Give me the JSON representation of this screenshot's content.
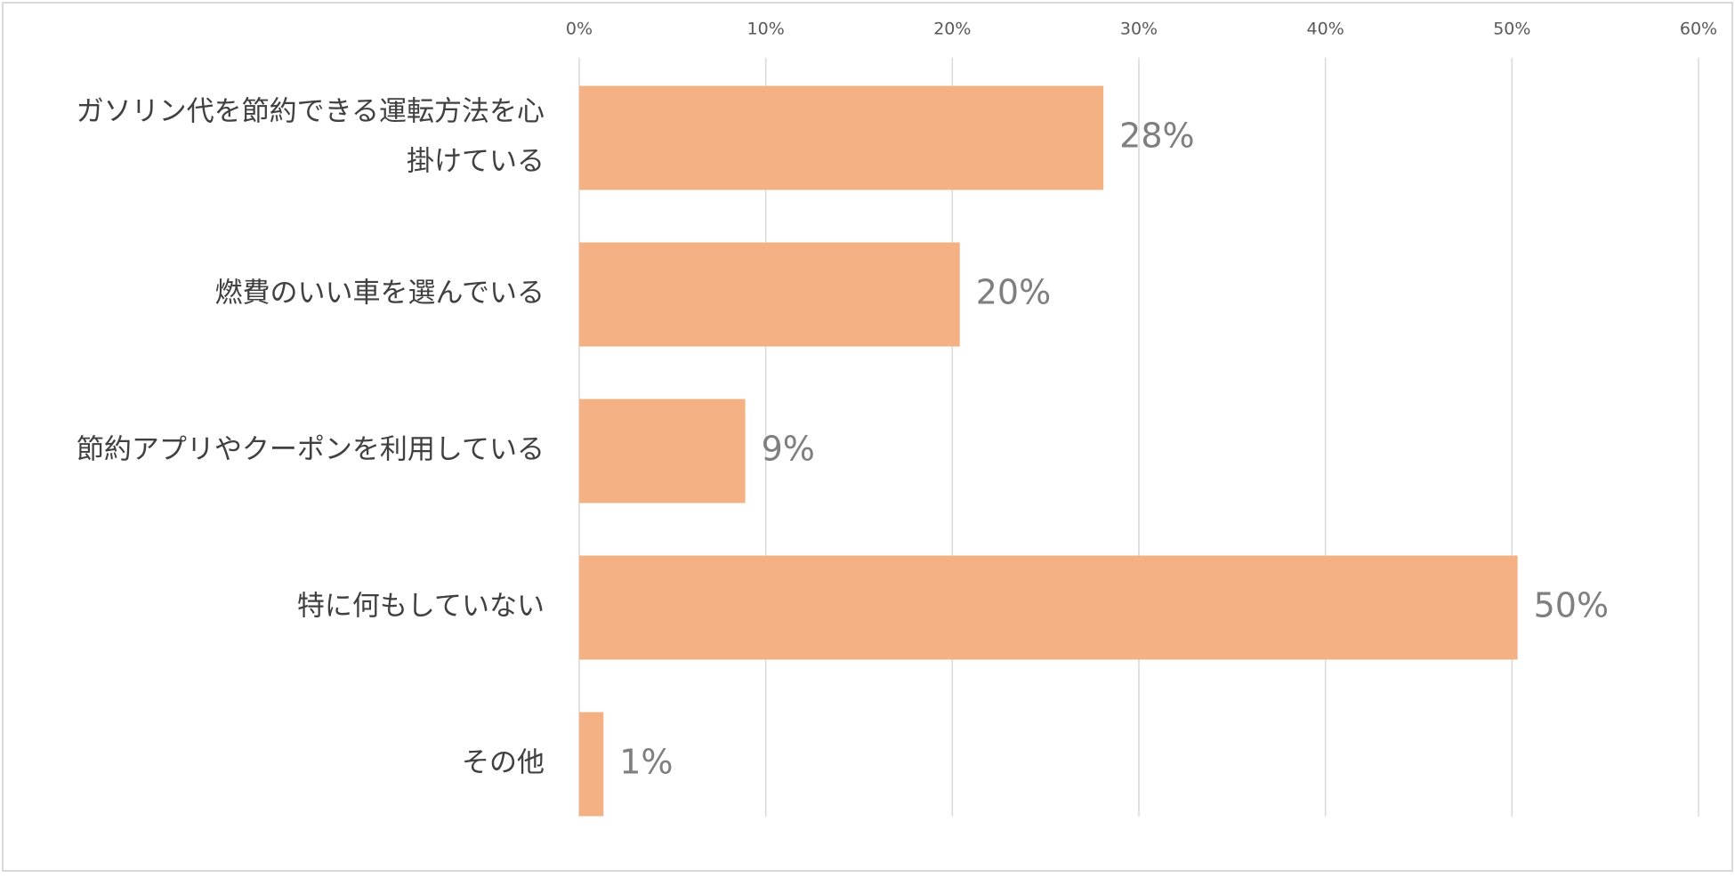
{
  "chart_data": {
    "type": "bar",
    "orientation": "horizontal",
    "title": "",
    "xlabel": "",
    "ylabel": "",
    "xlim": [
      0,
      60
    ],
    "x_ticks": [
      "0%",
      "10%",
      "20%",
      "30%",
      "40%",
      "50%",
      "60%"
    ],
    "x_tick_values": [
      0,
      10,
      20,
      30,
      40,
      50,
      60
    ],
    "x_axis_position": "top",
    "grid": true,
    "legend": "none",
    "categories": [
      "ガソリン代を節約できる運転方法を心掛けている",
      "燃費のいい車を選んでいる",
      "節約アプリやクーポンを利用している",
      "特に何もしていない",
      "その他"
    ],
    "category_lines": [
      [
        "ガソリン代を節約できる運転方法を心",
        "掛けている"
      ],
      [
        "燃費のいい車を選んでいる"
      ],
      [
        "節約アプリやクーポンを利用している"
      ],
      [
        "特に何もしていない"
      ],
      [
        "その他"
      ]
    ],
    "values": [
      28.1,
      20.4,
      8.9,
      50.3,
      1.3
    ],
    "data_labels": [
      "28%",
      "20%",
      "9%",
      "50%",
      "1%"
    ],
    "colors": {
      "bar": "#F4B183",
      "gridline": "#D9D9D9",
      "tick_text": "#595959",
      "category_text": "#404040",
      "data_label_text": "#7F7F7F",
      "frame": "#D9D9D9"
    }
  }
}
